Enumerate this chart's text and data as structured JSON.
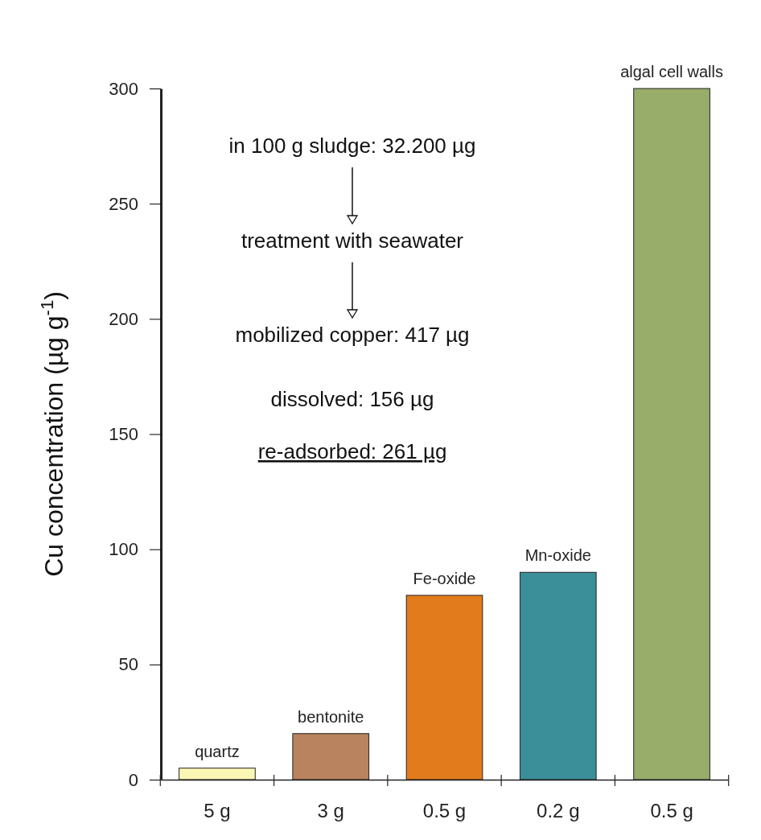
{
  "chart_data": {
    "type": "bar",
    "categories": [
      "5 g",
      "3 g",
      "0.5 g",
      "0.2 g",
      "0.5 g"
    ],
    "values": [
      5,
      20,
      80,
      90,
      300
    ],
    "colors": [
      "#faf6b4",
      "#b8835e",
      "#e27b1c",
      "#3b8f98",
      "#98ad6a"
    ],
    "value_labels": [
      "quartz",
      "bentonite",
      "Fe-oxide",
      "Mn-oxide",
      "algal cell walls"
    ],
    "ylabel": "Cu concentration (µg g$^{-1}$)",
    "ylim": [
      0,
      300
    ],
    "yticks": [
      0,
      50,
      100,
      150,
      200,
      250,
      300
    ],
    "annotations": [
      "in 100 g sludge: 32.200 µg",
      "treatment with seawater",
      "mobilized copper: 417 µg",
      "dissolved: 156 µg",
      "re-adsorbed: 261 µg"
    ]
  }
}
